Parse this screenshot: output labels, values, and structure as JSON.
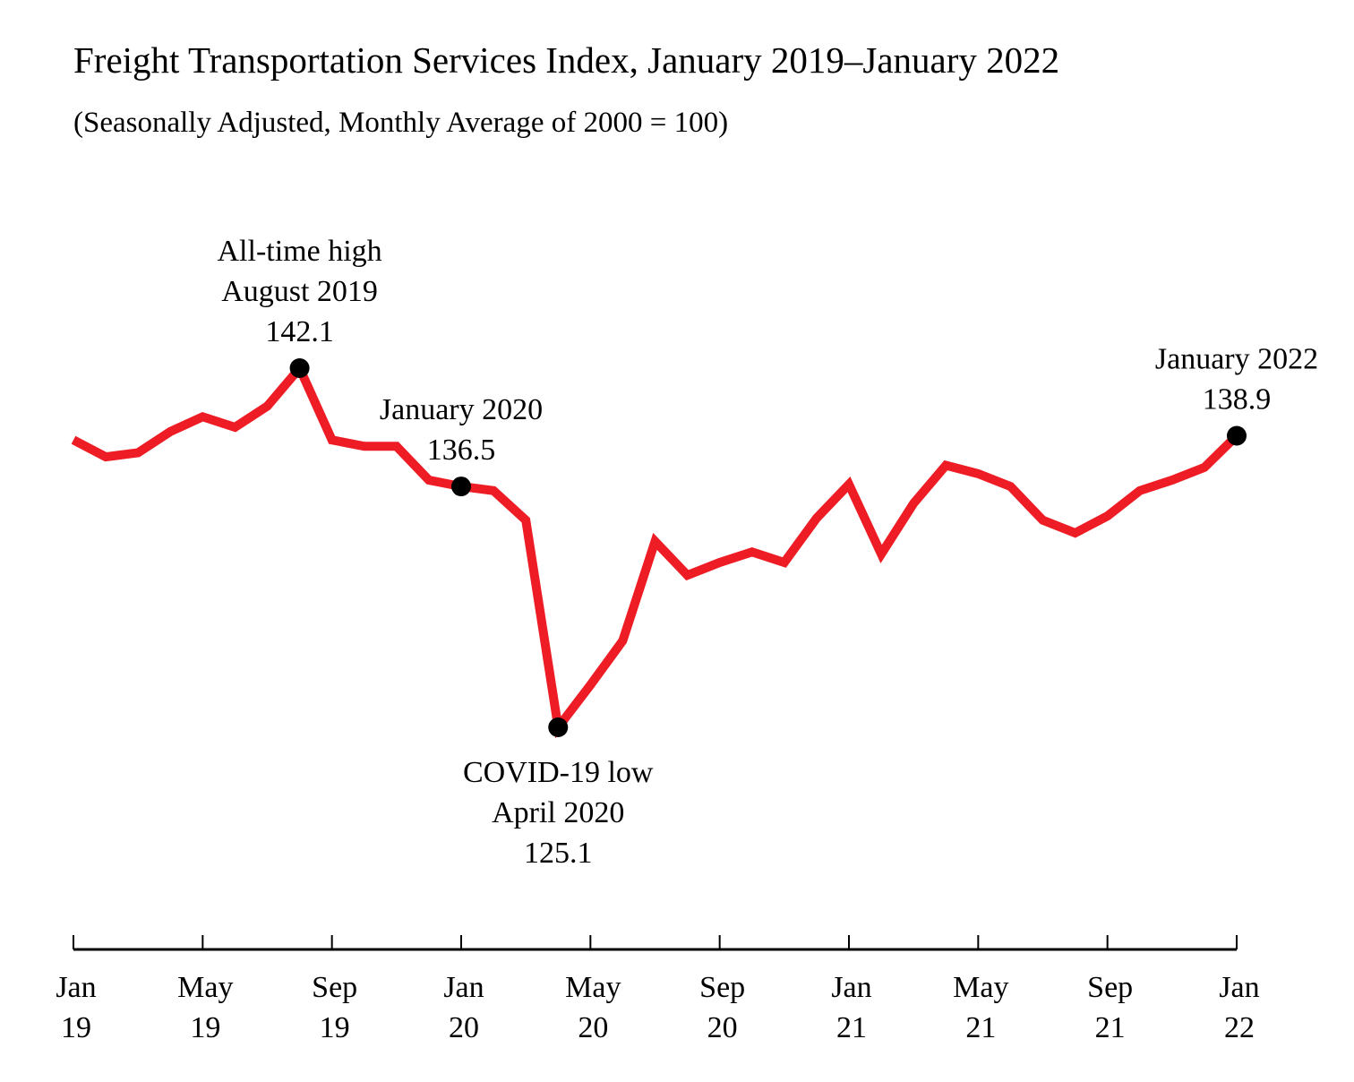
{
  "chart_data": {
    "type": "line",
    "title": "Freight Transportation Services Index, January 2019–January 2022",
    "subtitle": "(Seasonally Adjusted, Monthly Average of 2000 = 100)",
    "xlabel": "",
    "ylabel": "",
    "grid": false,
    "legend": "none",
    "line_color": "#ee1c24",
    "marker_color": "#000000",
    "x": [
      "2019-01",
      "2019-02",
      "2019-03",
      "2019-04",
      "2019-05",
      "2019-06",
      "2019-07",
      "2019-08",
      "2019-09",
      "2019-10",
      "2019-11",
      "2019-12",
      "2020-01",
      "2020-02",
      "2020-03",
      "2020-04",
      "2020-05",
      "2020-06",
      "2020-07",
      "2020-08",
      "2020-09",
      "2020-10",
      "2020-11",
      "2020-12",
      "2021-01",
      "2021-02",
      "2021-03",
      "2021-04",
      "2021-05",
      "2021-06",
      "2021-07",
      "2021-08",
      "2021-09",
      "2021-10",
      "2021-11",
      "2021-12",
      "2022-01"
    ],
    "values": [
      138.7,
      137.9,
      138.1,
      139.1,
      139.8,
      139.3,
      140.3,
      142.1,
      138.7,
      138.4,
      138.4,
      136.8,
      136.5,
      136.3,
      134.9,
      125.1,
      127.1,
      129.2,
      133.9,
      132.3,
      132.9,
      133.4,
      132.9,
      135.0,
      136.6,
      133.3,
      135.7,
      137.5,
      137.1,
      136.5,
      134.9,
      134.3,
      135.1,
      136.3,
      136.8,
      137.4,
      138.9
    ],
    "x_ticks": [
      {
        "x": "2019-01",
        "line1": "Jan",
        "line2": "19"
      },
      {
        "x": "2019-05",
        "line1": "May",
        "line2": "19"
      },
      {
        "x": "2019-09",
        "line1": "Sep",
        "line2": "19"
      },
      {
        "x": "2020-01",
        "line1": "Jan",
        "line2": "20"
      },
      {
        "x": "2020-05",
        "line1": "May",
        "line2": "20"
      },
      {
        "x": "2020-09",
        "line1": "Sep",
        "line2": "20"
      },
      {
        "x": "2021-01",
        "line1": "Jan",
        "line2": "21"
      },
      {
        "x": "2021-05",
        "line1": "May",
        "line2": "21"
      },
      {
        "x": "2021-09",
        "line1": "Sep",
        "line2": "21"
      },
      {
        "x": "2022-01",
        "line1": "Jan",
        "line2": "22"
      }
    ],
    "annotations": [
      {
        "x": "2019-08",
        "value": 142.1,
        "position": "above",
        "lines": [
          "All-time high",
          "August 2019",
          "142.1"
        ]
      },
      {
        "x": "2020-01",
        "value": 136.5,
        "position": "above",
        "lines": [
          "January 2020",
          "136.5"
        ]
      },
      {
        "x": "2020-04",
        "value": 125.1,
        "position": "below",
        "lines": [
          "COVID-19 low",
          "April 2020",
          "125.1"
        ]
      },
      {
        "x": "2022-01",
        "value": 138.9,
        "position": "above",
        "lines": [
          "January 2022",
          "138.9"
        ]
      }
    ]
  }
}
